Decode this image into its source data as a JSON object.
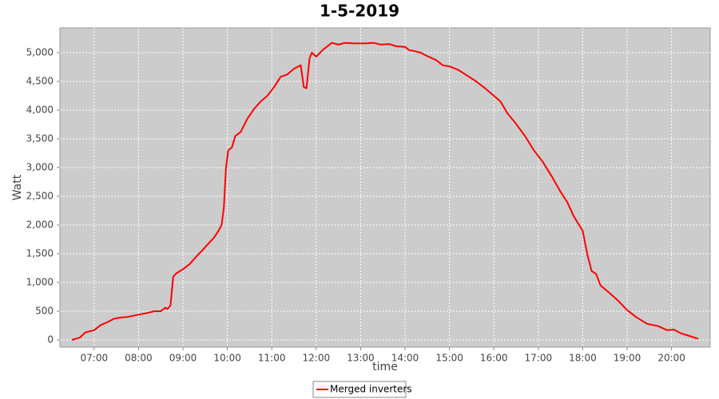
{
  "chart_data": {
    "type": "line",
    "title": "1-5-2019",
    "x_label": "time",
    "y_label": "Watt",
    "x": [
      6.5,
      6.68,
      6.8,
      7.0,
      7.15,
      7.3,
      7.45,
      7.6,
      7.75,
      8.0,
      8.2,
      8.35,
      8.5,
      8.6,
      8.65,
      8.72,
      8.78,
      8.85,
      9.0,
      9.15,
      9.3,
      9.45,
      9.6,
      9.7,
      9.8,
      9.87,
      9.92,
      9.97,
      10.02,
      10.1,
      10.18,
      10.3,
      10.45,
      10.6,
      10.75,
      10.9,
      11.05,
      11.2,
      11.35,
      11.5,
      11.65,
      11.72,
      11.78,
      11.85,
      11.9,
      12.0,
      12.15,
      12.35,
      12.5,
      12.65,
      12.85,
      13.1,
      13.3,
      13.45,
      13.65,
      13.8,
      14.0,
      14.1,
      14.2,
      14.35,
      14.5,
      14.7,
      14.85,
      15.0,
      15.2,
      15.4,
      15.6,
      15.8,
      16.0,
      16.15,
      16.3,
      16.5,
      16.7,
      16.9,
      17.1,
      17.3,
      17.5,
      17.65,
      17.8,
      18.0,
      18.1,
      18.2,
      18.3,
      18.4,
      18.6,
      18.8,
      19.0,
      19.2,
      19.45,
      19.7,
      19.9,
      20.05,
      20.2,
      20.4,
      20.6
    ],
    "series": [
      {
        "name": "Merged inverters",
        "color": "#ff0000",
        "values": [
          0,
          40,
          130,
          170,
          260,
          310,
          370,
          390,
          400,
          440,
          470,
          500,
          500,
          560,
          540,
          600,
          1100,
          1160,
          1230,
          1320,
          1450,
          1570,
          1700,
          1780,
          1900,
          2000,
          2300,
          3000,
          3300,
          3350,
          3550,
          3620,
          3850,
          4020,
          4150,
          4250,
          4400,
          4580,
          4620,
          4720,
          4780,
          4400,
          4380,
          4900,
          5000,
          4930,
          5050,
          5170,
          5140,
          5170,
          5160,
          5160,
          5170,
          5140,
          5150,
          5110,
          5100,
          5040,
          5030,
          5000,
          4940,
          4870,
          4780,
          4760,
          4700,
          4600,
          4500,
          4380,
          4250,
          4150,
          3950,
          3760,
          3550,
          3300,
          3100,
          2850,
          2580,
          2400,
          2150,
          1900,
          1500,
          1200,
          1150,
          950,
          820,
          680,
          520,
          400,
          280,
          240,
          170,
          180,
          120,
          70,
          20
        ]
      }
    ],
    "xlim": [
      6.23,
      20.87
    ],
    "xticks": [
      {
        "value": 7,
        "label": "07:00"
      },
      {
        "value": 8,
        "label": "08:00"
      },
      {
        "value": 9,
        "label": "09:00"
      },
      {
        "value": 10,
        "label": "10:00"
      },
      {
        "value": 11,
        "label": "11:00"
      },
      {
        "value": 12,
        "label": "12:00"
      },
      {
        "value": 13,
        "label": "13:00"
      },
      {
        "value": 14,
        "label": "14:00"
      },
      {
        "value": 15,
        "label": "15:00"
      },
      {
        "value": 16,
        "label": "16:00"
      },
      {
        "value": 17,
        "label": "17:00"
      },
      {
        "value": 18,
        "label": "18:00"
      },
      {
        "value": 19,
        "label": "19:00"
      },
      {
        "value": 20,
        "label": "20:00"
      }
    ],
    "ylim": [
      -125,
      5430
    ],
    "yticks": [
      0,
      500,
      {
        "value": 1000,
        "label": "1,000"
      },
      {
        "value": 1500,
        "label": "1,500"
      },
      {
        "value": 2000,
        "label": "2,000"
      },
      {
        "value": 2500,
        "label": "2,500"
      },
      {
        "value": 3000,
        "label": "3,000"
      },
      {
        "value": 3500,
        "label": "3,500"
      },
      {
        "value": 4000,
        "label": "4,000"
      },
      {
        "value": 4500,
        "label": "4,500"
      },
      {
        "value": 5000,
        "label": "5,000"
      }
    ],
    "grid": true,
    "legend": "bottom"
  }
}
